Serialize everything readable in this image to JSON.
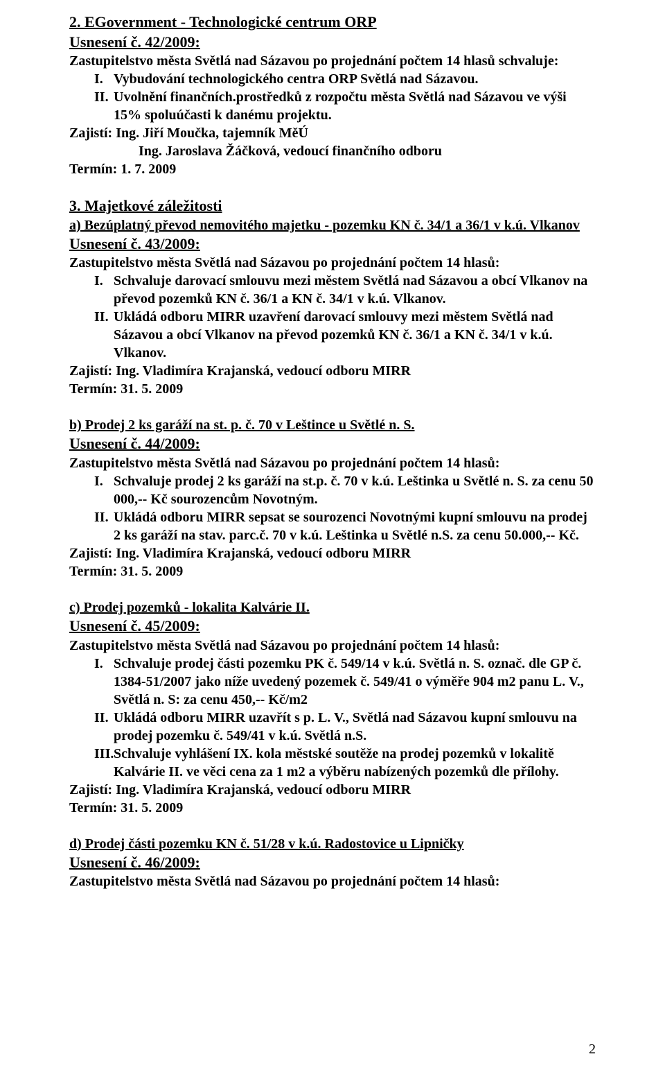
{
  "sec2": {
    "title": "2. EGovernment - Technologické centrum ORP",
    "res": "Usnesení č. 42/2009:",
    "intro": "Zastupitelstvo města Světlá nad Sázavou po projednání počtem 14 hlasů schvaluje:",
    "i_num": "I.",
    "i_text": "Vybudování technologického centra ORP Světlá nad Sázavou.",
    "ii_num": "II.",
    "ii_text": "Uvolnění finančních.prostředků z rozpočtu města Světlá nad Sázavou ve výši 15% spoluúčasti k danému projektu.",
    "zaj": "Zajistí: Ing. Jiří Moučka, tajemník MěÚ",
    "ing": "Ing. Jaroslava Žáčková, vedoucí finančního odboru",
    "termin": "Termín: 1. 7. 2009"
  },
  "sec3": {
    "title": "3. Majetkové záležitosti",
    "a_label": "a) Bezúplatný převod nemovitého majetku - pozemku KN č. 34/1 a 36/1 v k.ú. Vlkanov",
    "res": "Usnesení č. 43/2009:",
    "intro": "Zastupitelstvo města Světlá nad Sázavou po projednání počtem 14 hlasů:",
    "i_num": "I.",
    "i_text": "Schvaluje darovací smlouvu mezi městem Světlá nad Sázavou a obcí Vlkanov na převod pozemků KN č. 36/1 a KN č. 34/1 v k.ú. Vlkanov.",
    "ii_num": "II.",
    "ii_text": "Ukládá odboru MIRR uzavření darovací smlouvy mezi městem Světlá nad Sázavou a obcí Vlkanov na převod pozemků KN č. 36/1 a KN č. 34/1 v k.ú. Vlkanov.",
    "zaj": "Zajistí: Ing. Vladimíra Krajanská, vedoucí odboru MIRR",
    "termin": "Termín: 31. 5. 2009"
  },
  "sec_b": {
    "label": "b) Prodej 2 ks garáží na st. p. č. 70 v Leštince u Světlé n. S.",
    "res": "Usnesení č. 44/2009:",
    "intro": "Zastupitelstvo města Světlá nad Sázavou po projednání počtem 14 hlasů:",
    "i_num": "I.",
    "i_text": "Schvaluje prodej 2 ks garáží na st.p. č. 70 v k.ú. Leštinka u Světlé n. S. za cenu 50 000,-- Kč sourozencům Novotným.",
    "ii_num": "II.",
    "ii_text": "Ukládá odboru MIRR sepsat se sourozenci Novotnými kupní smlouvu na prodej 2 ks garáží na stav. parc.č. 70 v k.ú. Leštinka u Světlé n.S. za cenu 50.000,-- Kč.",
    "zaj": "Zajistí: Ing. Vladimíra Krajanská, vedoucí odboru MIRR",
    "termin": "Termín: 31. 5. 2009"
  },
  "sec_c": {
    "label": "c) Prodej pozemků - lokalita Kalvárie II.",
    "res": "Usnesení č. 45/2009:",
    "intro": "Zastupitelstvo města Světlá nad Sázavou po projednání počtem 14 hlasů:",
    "i_num": "I.",
    "i_text": "Schvaluje prodej části pozemku PK č. 549/14 v k.ú. Světlá n. S. označ. dle GP č. 1384-51/2007 jako níže uvedený pozemek č. 549/41 o výměře 904 m2 panu L. V., Světlá n. S: za cenu 450,-- Kč/m2",
    "ii_num": "II.",
    "ii_text": "Ukládá  odboru MIRR uzavřít s p. L. V., Světlá nad Sázavou kupní smlouvu na prodej pozemku č. 549/41 v k.ú. Světlá n.S.",
    "iii_num": "III.",
    "iii_text": "Schvaluje vyhlášení IX. kola městské soutěže na prodej pozemků v lokalitě Kalvárie II. ve věci cena za 1 m2 a výběru nabízených pozemků dle přílohy.",
    "zaj": "Zajistí: Ing. Vladimíra Krajanská, vedoucí odboru MIRR",
    "termin": "Termín: 31. 5. 2009"
  },
  "sec_d": {
    "label": "d) Prodej části pozemku KN č. 51/28 v k.ú. Radostovice u Lipničky",
    "res": "Usnesení č. 46/2009:",
    "intro": "Zastupitelstvo  města Světlá nad Sázavou po projednání počtem 14 hlasů:"
  },
  "page_number": "2"
}
